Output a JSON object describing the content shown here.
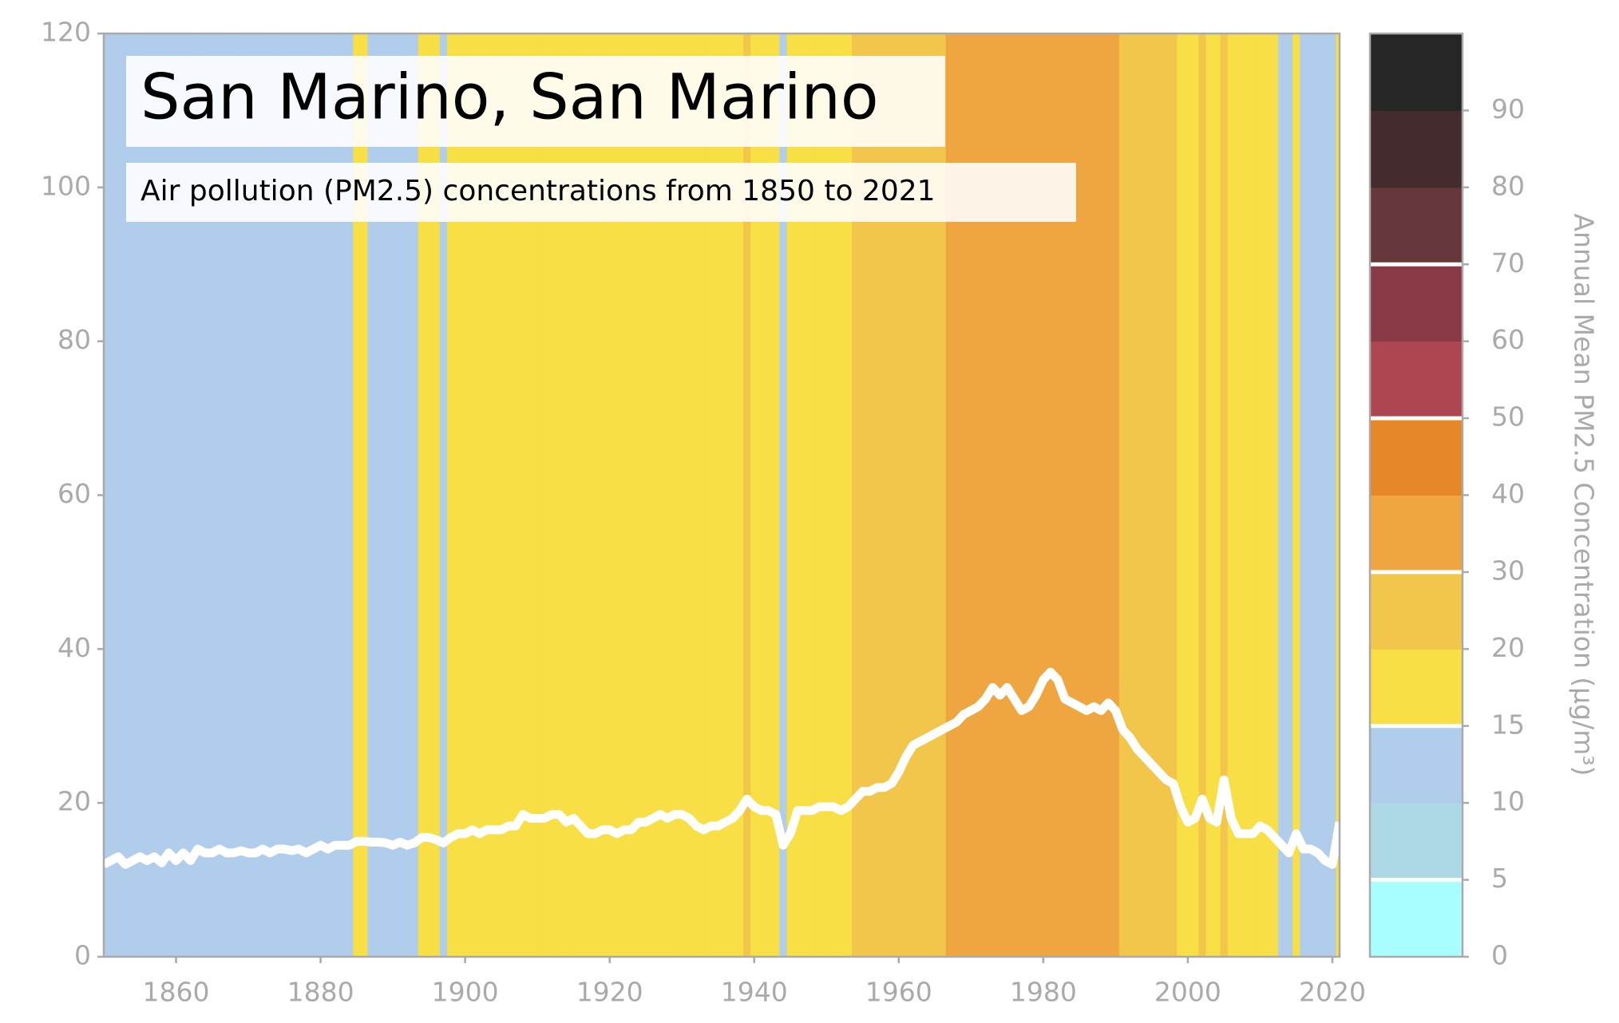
{
  "chart_data": {
    "type": "line",
    "title": "San Marino, San Marino",
    "subtitle": "Air pollution (PM2.5) concentrations from 1850 to 2021",
    "x": [
      1850,
      1851,
      1852,
      1853,
      1854,
      1855,
      1856,
      1857,
      1858,
      1859,
      1860,
      1861,
      1862,
      1863,
      1864,
      1865,
      1866,
      1867,
      1868,
      1869,
      1870,
      1871,
      1872,
      1873,
      1874,
      1875,
      1876,
      1877,
      1878,
      1879,
      1880,
      1881,
      1882,
      1883,
      1884,
      1885,
      1886,
      1887,
      1888,
      1889,
      1890,
      1891,
      1892,
      1893,
      1894,
      1895,
      1896,
      1897,
      1898,
      1899,
      1900,
      1901,
      1902,
      1903,
      1904,
      1905,
      1906,
      1907,
      1908,
      1909,
      1910,
      1911,
      1912,
      1913,
      1914,
      1915,
      1916,
      1917,
      1918,
      1919,
      1920,
      1921,
      1922,
      1923,
      1924,
      1925,
      1926,
      1927,
      1928,
      1929,
      1930,
      1931,
      1932,
      1933,
      1934,
      1935,
      1936,
      1937,
      1938,
      1939,
      1940,
      1941,
      1942,
      1943,
      1944,
      1945,
      1946,
      1947,
      1948,
      1949,
      1950,
      1951,
      1952,
      1953,
      1954,
      1955,
      1956,
      1957,
      1958,
      1959,
      1960,
      1961,
      1962,
      1963,
      1964,
      1965,
      1966,
      1967,
      1968,
      1969,
      1970,
      1971,
      1972,
      1973,
      1974,
      1975,
      1976,
      1977,
      1978,
      1979,
      1980,
      1981,
      1982,
      1983,
      1984,
      1985,
      1986,
      1987,
      1988,
      1989,
      1990,
      1991,
      1992,
      1993,
      1994,
      1995,
      1996,
      1997,
      1998,
      1999,
      2000,
      2001,
      2002,
      2003,
      2004,
      2005,
      2006,
      2007,
      2008,
      2009,
      2010,
      2011,
      2012,
      2013,
      2014,
      2015,
      2016,
      2017,
      2018,
      2019,
      2020,
      2021
    ],
    "series": [
      {
        "color": "#ffffff",
        "values": [
          12,
          12.5,
          13,
          12,
          12.5,
          13,
          12.5,
          13,
          12.2,
          13.5,
          12.5,
          13.5,
          12.5,
          14,
          13.5,
          13.5,
          14,
          13.5,
          13.5,
          13.8,
          13.5,
          13.5,
          14,
          13.5,
          14,
          14,
          13.8,
          14,
          13.5,
          14,
          14.5,
          14,
          14.5,
          14.5,
          14.5,
          15,
          15,
          14.9,
          14.9,
          14.8,
          14.5,
          14.9,
          14.5,
          14.8,
          15.5,
          15.5,
          15.2,
          14.8,
          15.5,
          16,
          16,
          16.5,
          16,
          16.5,
          16.5,
          16.5,
          17,
          17,
          18.5,
          18,
          18,
          18,
          18.5,
          18.5,
          17.5,
          18,
          17,
          16,
          16,
          16.5,
          16.5,
          16,
          16.5,
          16.5,
          17.5,
          17.5,
          18,
          18.5,
          18,
          18.5,
          18.5,
          18,
          17,
          16.5,
          17,
          17,
          17.5,
          18,
          19,
          20.5,
          19.5,
          19,
          19,
          18.5,
          14.5,
          16,
          19,
          19,
          19,
          19.5,
          19.5,
          19.5,
          19,
          19.5,
          20.5,
          21.5,
          21.5,
          22,
          22,
          22.5,
          24,
          26,
          27.5,
          28,
          28.5,
          29,
          29.5,
          30,
          30.5,
          31.5,
          32,
          32.5,
          33.5,
          35,
          34,
          35,
          33.5,
          32,
          32.5,
          34,
          36,
          37,
          36,
          33.5,
          33,
          32.5,
          32,
          32.5,
          32,
          33,
          32,
          29.5,
          28.5,
          27,
          26,
          25,
          24,
          23,
          22.5,
          19.5,
          17.5,
          18,
          20.5,
          18,
          17.5,
          23,
          18,
          16,
          16,
          16,
          17,
          16.5,
          15.5,
          14.5,
          13.5,
          16,
          14,
          14,
          13.5,
          12.5,
          12,
          17.5
        ]
      }
    ],
    "xlim": [
      1850,
      2021
    ],
    "ylim": [
      0,
      120
    ],
    "xticks": [
      1860,
      1880,
      1900,
      1920,
      1940,
      1960,
      1980,
      2000,
      2020
    ],
    "yticks": [
      0,
      20,
      40,
      60,
      80,
      100,
      120
    ],
    "colorbar": {
      "label": "Annual Mean PM2.5 Concentration (μg/m³)",
      "bounds": [
        0,
        5,
        10,
        15,
        20,
        30,
        40,
        50,
        60,
        70,
        80,
        90,
        100
      ],
      "colors": [
        "#a9ffff",
        "#add8e6",
        "#b0cdec",
        "#f7df45",
        "#f2c64a",
        "#efa640",
        "#e6882a",
        "#ae4652",
        "#893a46",
        "#66383b",
        "#432b2e",
        "#262626"
      ],
      "ticks": [
        0,
        5,
        10,
        15,
        20,
        30,
        40,
        50,
        60,
        70,
        80,
        90
      ],
      "lines": [
        5,
        15,
        30,
        50,
        70
      ]
    }
  }
}
